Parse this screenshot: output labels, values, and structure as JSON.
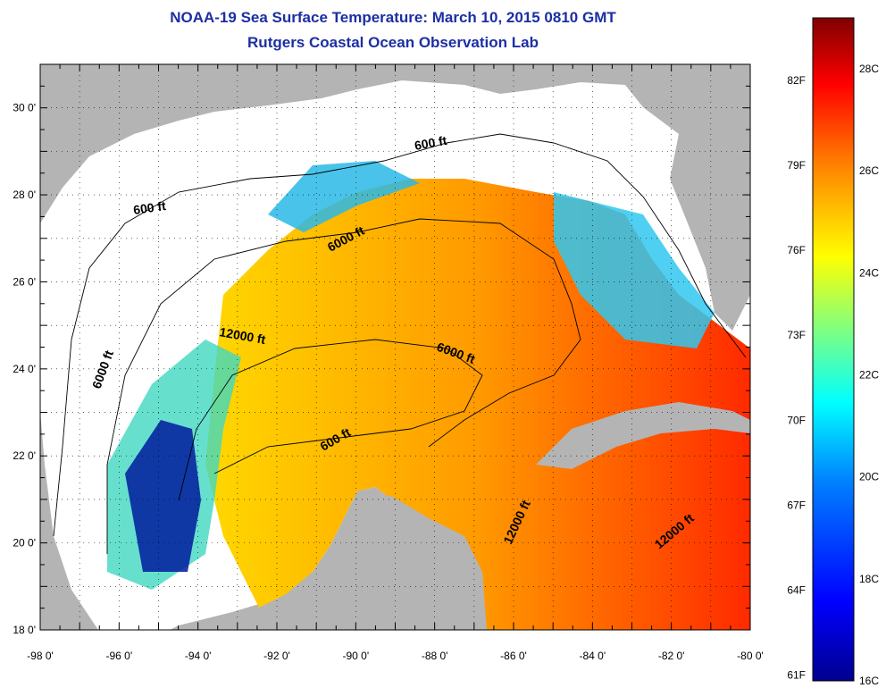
{
  "header": {
    "title": "NOAA-19 Sea Surface Temperature:  March 10, 2015 0810 GMT",
    "subtitle": "Rutgers Coastal Ocean Observation Lab"
  },
  "map": {
    "lon_range": [
      -98,
      -80
    ],
    "lat_range": [
      18,
      31
    ],
    "lon_ticks": [
      "-98 0'",
      "-96 0'",
      "-94 0'",
      "-92 0'",
      "-90 0'",
      "-88 0'",
      "-86 0'",
      "-84 0'",
      "-82 0'",
      "-80 0'"
    ],
    "lat_ticks": [
      "18 0'",
      "20 0'",
      "22 0'",
      "24 0'",
      "26 0'",
      "28 0'",
      "30 0'"
    ],
    "contour_labels": [
      "600 ft",
      "600 ft",
      "6000 ft",
      "6000 ft",
      "6000 ft",
      "12000 ft",
      "600 ft",
      "12000 ft",
      "12000 ft"
    ],
    "colors": {
      "land": "#b4b4b4",
      "no_data": "#ffffff"
    }
  },
  "colorbar": {
    "fahrenheit_labels": [
      "82F",
      "79F",
      "76F",
      "73F",
      "70F",
      "67F",
      "64F",
      "61F"
    ],
    "celsius_labels": [
      "28C",
      "26C",
      "24C",
      "22C",
      "20C",
      "18C",
      "16C"
    ],
    "min_c": 16,
    "max_c": 29,
    "colors": [
      "#00008f",
      "#0000ff",
      "#0080ff",
      "#00ffff",
      "#80ff80",
      "#ffff00",
      "#ff8000",
      "#ff0000",
      "#800000"
    ]
  }
}
